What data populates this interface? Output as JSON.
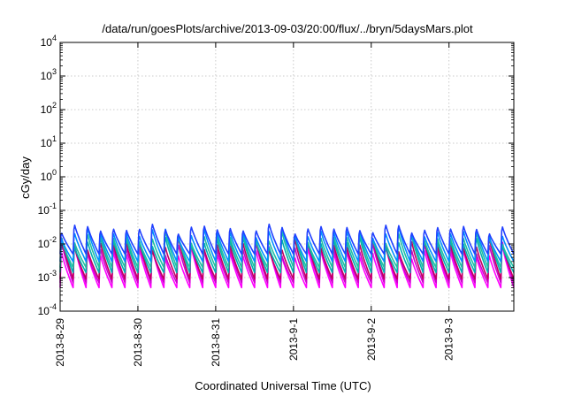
{
  "chart_data": {
    "type": "line",
    "title": "/data/run/goesPlots/archive/2013-09-03/20:00/flux/../bryn/5daysMars.plot",
    "xlabel": "Coordinated Universal Time (UTC)",
    "ylabel": "cGy/day",
    "yscale": "log",
    "ylim": [
      0.0001,
      10000
    ],
    "xlim": [
      "2013-08-29T00:00",
      "2013-09-03T20:00"
    ],
    "x_ticks": [
      "2013-8-29",
      "2013-8-30",
      "2013-8-31",
      "2013-9-1",
      "2013-9-2",
      "2013-9-3"
    ],
    "y_ticks": [
      {
        "base": "10",
        "exp": "-4"
      },
      {
        "base": "10",
        "exp": "-3"
      },
      {
        "base": "10",
        "exp": "-2"
      },
      {
        "base": "10",
        "exp": "-1"
      },
      {
        "base": "10",
        "exp": "0"
      },
      {
        "base": "10",
        "exp": "1"
      },
      {
        "base": "10",
        "exp": "2"
      },
      {
        "base": "10",
        "exp": "3"
      },
      {
        "base": "10",
        "exp": "4"
      }
    ],
    "grid": true,
    "legend": false,
    "period_hours": 4,
    "series_colors": [
      "#ff00ff",
      "#cc00cc",
      "#c00060",
      "#00b0b0",
      "#20c0a0",
      "#0090ff",
      "#2040ff"
    ],
    "series": [
      {
        "color": "#ff00ff",
        "peak": 0.012,
        "trough": 0.0005
      },
      {
        "color": "#cc00cc",
        "peak": 0.016,
        "trough": 0.0007
      },
      {
        "color": "#c00060",
        "peak": 0.02,
        "trough": 0.0009
      },
      {
        "color": "#00b0b0",
        "peak": 0.025,
        "trough": 0.0014
      },
      {
        "color": "#20c0a0",
        "peak": 0.03,
        "trough": 0.002
      },
      {
        "color": "#0090ff",
        "peak": 0.04,
        "trough": 0.003
      },
      {
        "color": "#2040ff",
        "peak": 0.05,
        "trough": 0.005
      }
    ]
  }
}
